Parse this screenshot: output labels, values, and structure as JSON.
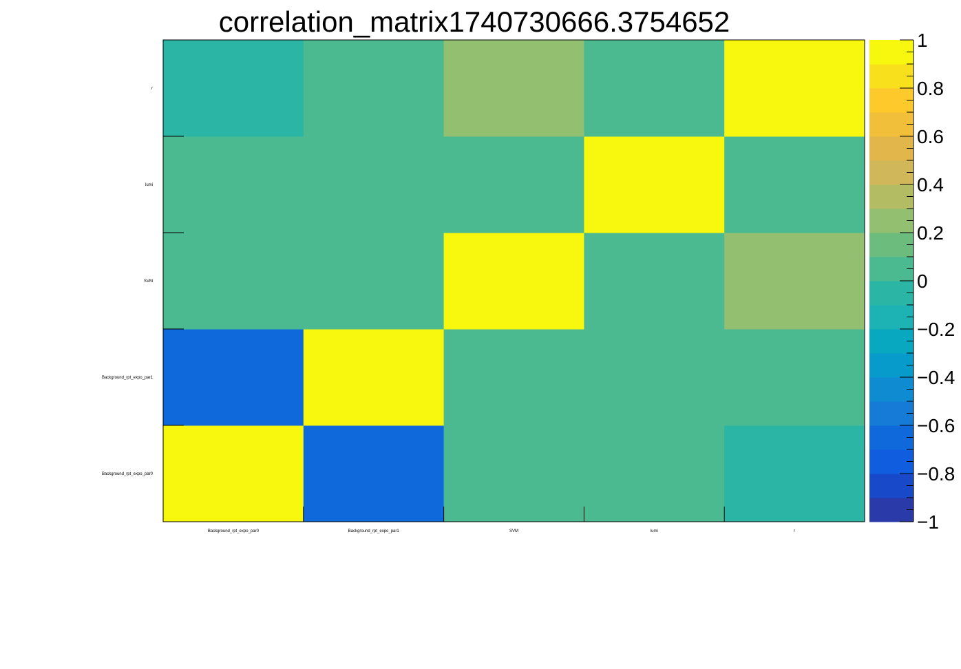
{
  "chart_data": {
    "type": "heatmap",
    "title": "correlation_matrix1740730666.3754652",
    "x_categories": [
      "Background_rpt_expo_par0",
      "Background_rpt_expo_par1",
      "SVM",
      "lumi",
      "r"
    ],
    "y_categories": [
      "Background_rpt_expo_par0",
      "Background_rpt_expo_par1",
      "SVM",
      "lumi",
      "r"
    ],
    "matrix": [
      [
        1.0,
        -0.7,
        0.0,
        0.0,
        -0.1
      ],
      [
        -0.7,
        1.0,
        0.0,
        0.0,
        0.0
      ],
      [
        0.0,
        0.0,
        1.0,
        0.0,
        0.25
      ],
      [
        0.0,
        0.0,
        0.0,
        1.0,
        0.0
      ],
      [
        -0.1,
        0.0,
        0.25,
        0.0,
        1.0
      ]
    ],
    "zlim": [
      -1,
      1
    ],
    "colorbar": {
      "ticks": [
        -1,
        -0.8,
        -0.6,
        -0.4,
        -0.2,
        0,
        0.2,
        0.4,
        0.6,
        0.8,
        1
      ],
      "tick_labels": [
        "−1",
        "−0.8",
        "−0.6",
        "−0.4",
        "−0.2",
        "0",
        "0.2",
        "0.4",
        "0.6",
        "0.8",
        "1"
      ],
      "palette": [
        "#2a3aa8",
        "#1749c8",
        "#105de0",
        "#1069da",
        "#157bd6",
        "#0f8bd2",
        "#079bcc",
        "#08a8c0",
        "#1db2b3",
        "#2ab5a4",
        "#4bba91",
        "#6cbc7d",
        "#93bf71",
        "#b3bc62",
        "#cfb75a",
        "#e2b64b",
        "#f1bf3a",
        "#fdc92b",
        "#f8e01d",
        "#f8f80e"
      ]
    },
    "grid": false,
    "legend": "colorbar-right"
  }
}
